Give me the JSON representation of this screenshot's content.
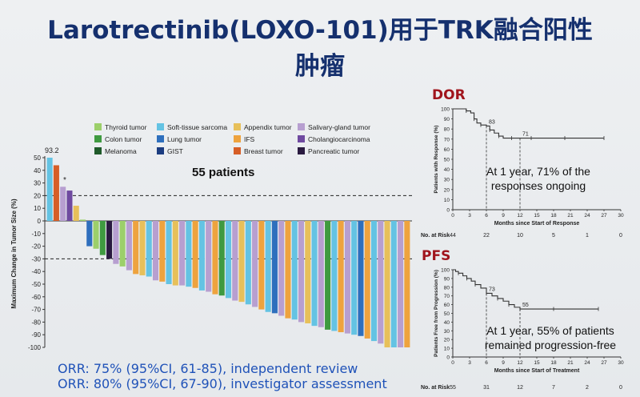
{
  "title": {
    "line1": "Larotrectinib(LOXO-101)用于TRK融合阳性",
    "line2": "肿瘤"
  },
  "waterfall": {
    "patients_label": "55 patients",
    "top_value_label": "93.2",
    "star_label": "*",
    "ylabel": "Maximum Change in Tumor Size (%)",
    "ylim": [
      -100,
      50
    ],
    "yticks": [
      50,
      40,
      30,
      20,
      10,
      0,
      -10,
      -20,
      -30,
      -40,
      -50,
      -60,
      -70,
      -80,
      -90,
      -100
    ],
    "reference_lines": [
      20,
      -30
    ],
    "legend": [
      {
        "label": "Thyroid tumor",
        "color": "#9ccf6a"
      },
      {
        "label": "Soft-tissue sarcoma",
        "color": "#64c3e3"
      },
      {
        "label": "Appendix tumor",
        "color": "#e7c05a"
      },
      {
        "label": "Salivary-gland tumor",
        "color": "#b79fd0"
      },
      {
        "label": "Colon tumor",
        "color": "#3f9a40"
      },
      {
        "label": "Lung tumor",
        "color": "#2e6fbd"
      },
      {
        "label": "IFS",
        "color": "#eea33e"
      },
      {
        "label": "Cholangiocarcinoma",
        "color": "#6f4aa0"
      },
      {
        "label": "Melanoma",
        "color": "#1f5a2a"
      },
      {
        "label": "GIST",
        "color": "#1b3c80"
      },
      {
        "label": "Breast tumor",
        "color": "#d65e27"
      },
      {
        "label": "Pancreatic tumor",
        "color": "#2a1a40"
      }
    ]
  },
  "chart_data": [
    {
      "type": "bar",
      "ylabel": "Maximum Change in Tumor Size (%)",
      "ylim": [
        -100,
        50
      ],
      "reference_lines": [
        20,
        -30
      ],
      "annotations": [
        "55 patients",
        "93.2"
      ],
      "values": [
        50,
        44,
        27,
        24,
        12,
        1,
        -20,
        -22,
        -27,
        -30,
        -34,
        -36,
        -39,
        -42,
        -43,
        -44,
        -47,
        -48,
        -50,
        -51,
        -51,
        -52,
        -53,
        -55,
        -56,
        -58,
        -59,
        -61,
        -63,
        -64,
        -66,
        -68,
        -70,
        -72,
        -73,
        -75,
        -77,
        -78,
        -80,
        -81,
        -83,
        -84,
        -86,
        -87,
        -88,
        -89,
        -90,
        -91,
        -93,
        -95,
        -97,
        -100,
        -100,
        -100,
        -100
      ],
      "colors": [
        "#64c3e3",
        "#d65e27",
        "#b79fd0",
        "#6f4aa0",
        "#e7c05a",
        "#9ccf6a",
        "#2e6fbd",
        "#9ccf6a",
        "#3f9a40",
        "#2a1a40",
        "#b79fd0",
        "#9ccf6a",
        "#b79fd0",
        "#eea33e",
        "#e7c05a",
        "#64c3e3",
        "#b79fd0",
        "#eea33e",
        "#64c3e3",
        "#e7c05a",
        "#b79fd0",
        "#64c3e3",
        "#eea33e",
        "#64c3e3",
        "#b79fd0",
        "#eea33e",
        "#3f9a40",
        "#64c3e3",
        "#b79fd0",
        "#e7c05a",
        "#64c3e3",
        "#b79fd0",
        "#eea33e",
        "#64c3e3",
        "#2e6fbd",
        "#b79fd0",
        "#eea33e",
        "#64c3e3",
        "#b79fd0",
        "#e7c05a",
        "#64c3e3",
        "#b79fd0",
        "#3f9a40",
        "#64c3e3",
        "#eea33e",
        "#b79fd0",
        "#64c3e3",
        "#2e6fbd",
        "#eea33e",
        "#64c3e3",
        "#b79fd0",
        "#e7c05a",
        "#64c3e3",
        "#b79fd0",
        "#eea33e"
      ]
    },
    {
      "type": "line",
      "title": "DOR",
      "ylabel": "Patients with Response (%)",
      "xlabel": "Months since Start of Response",
      "xlim": [
        0,
        30
      ],
      "ylim": [
        0,
        100
      ],
      "xticks": [
        0,
        3,
        6,
        9,
        12,
        15,
        18,
        21,
        24,
        27,
        30
      ],
      "yticks": [
        0,
        10,
        20,
        30,
        40,
        50,
        60,
        70,
        80,
        90,
        100
      ],
      "x": [
        0,
        1.8,
        2.4,
        3.2,
        3.8,
        4.3,
        5.0,
        6.0,
        6.6,
        7.4,
        8.2,
        9.0,
        10.5,
        12,
        14,
        17,
        20,
        24,
        27
      ],
      "y": [
        100,
        100,
        98,
        96,
        90,
        86,
        84,
        83,
        79,
        76,
        73,
        71,
        71,
        71,
        71,
        71,
        71,
        71,
        71
      ],
      "point_labels": [
        {
          "x": 6,
          "label": "83"
        },
        {
          "x": 12,
          "label": "71"
        }
      ],
      "risk_label": "No. at Risk",
      "at_risk": [
        "44",
        "22",
        "10",
        "5",
        "1",
        "0"
      ]
    },
    {
      "type": "line",
      "title": "PFS",
      "ylabel": "Patients Free from Progression (%)",
      "xlabel": "Months since Start of Treatment",
      "xlim": [
        0,
        30
      ],
      "ylim": [
        0,
        100
      ],
      "xticks": [
        0,
        3,
        6,
        9,
        12,
        15,
        18,
        21,
        24,
        27,
        30
      ],
      "yticks": [
        0,
        10,
        20,
        30,
        40,
        50,
        60,
        70,
        80,
        90,
        100
      ],
      "x": [
        0,
        0.5,
        1.0,
        1.8,
        2.5,
        3.3,
        4.0,
        5.0,
        6.0,
        7.0,
        8.0,
        9.0,
        10.0,
        11.0,
        12.0,
        14.0,
        18,
        22,
        26
      ],
      "y": [
        100,
        98,
        96,
        93,
        90,
        87,
        83,
        79,
        73,
        70,
        67,
        64,
        60,
        57,
        55,
        55,
        55,
        55,
        55
      ],
      "point_labels": [
        {
          "x": 6,
          "label": "73"
        },
        {
          "x": 12,
          "label": "55"
        }
      ],
      "risk_label": "No. at Risk",
      "at_risk": [
        "55",
        "31",
        "12",
        "7",
        "2",
        "0"
      ]
    }
  ],
  "dor": {
    "title": "DOR",
    "note": "At 1 year, 71% of the responses ongoing"
  },
  "pfs": {
    "title": "PFS",
    "note": "At 1 year, 55% of patients remained progression-free"
  },
  "orr": {
    "line1": "ORR: 75% (95%CI, 61-85), independent review",
    "line2": "ORR: 80% (95%CI, 67-90), investigator assessment"
  }
}
